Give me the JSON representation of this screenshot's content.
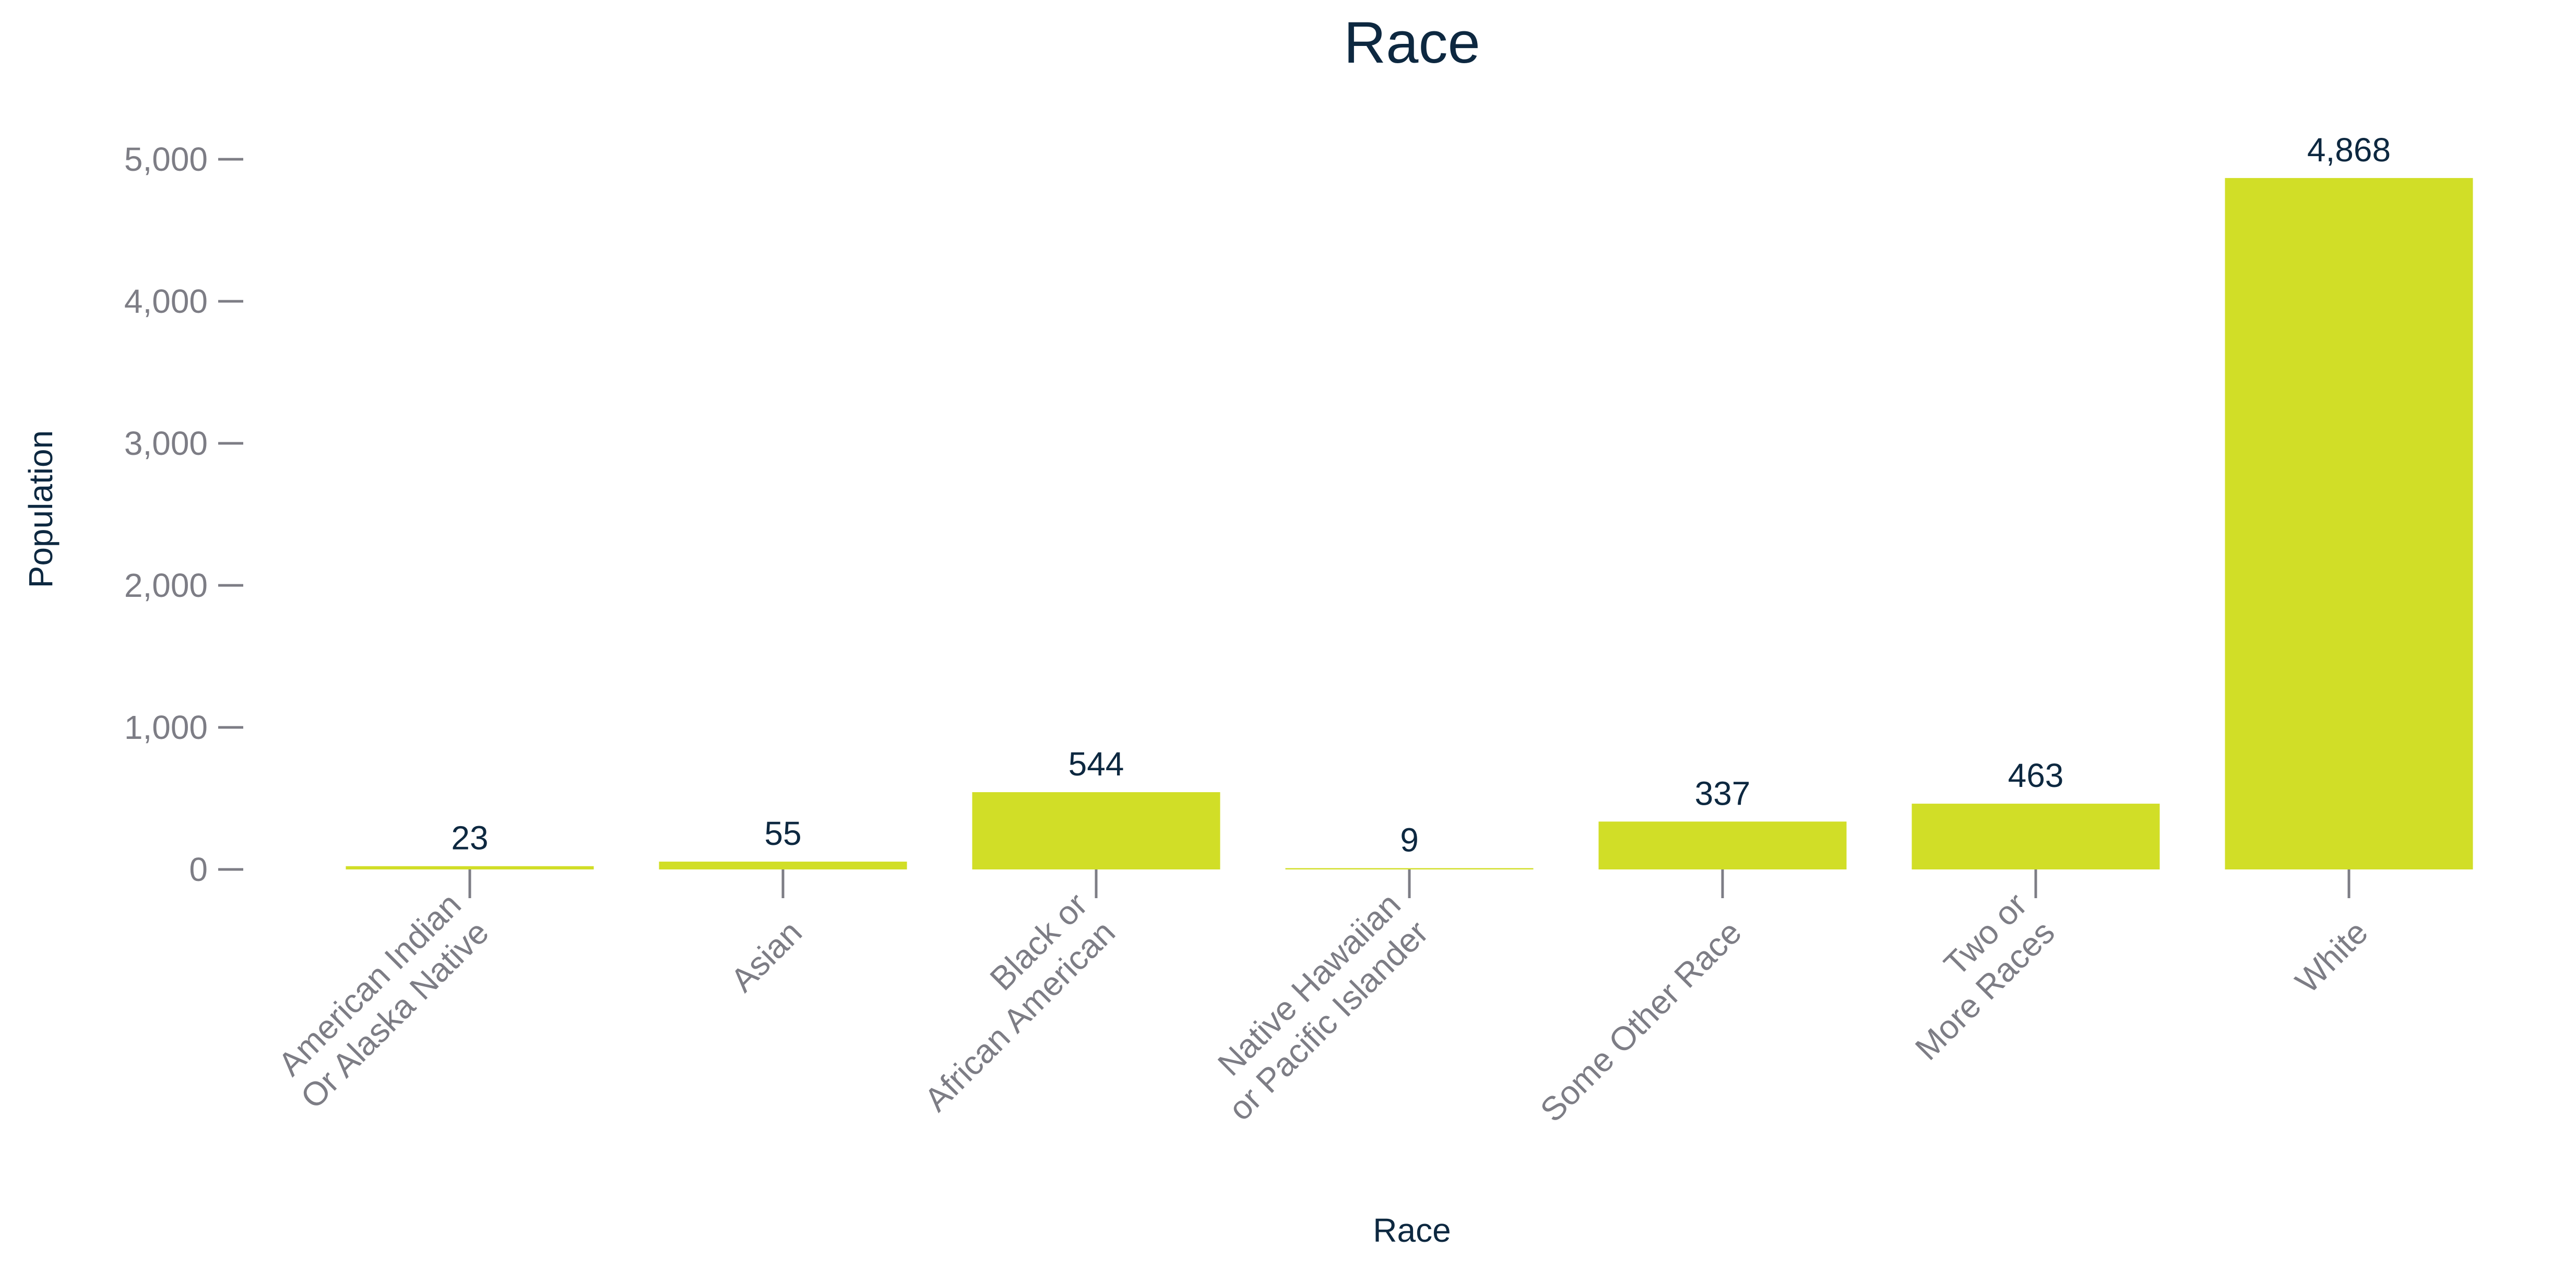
{
  "chart_data": {
    "type": "bar",
    "title": "Race",
    "xlabel": "Race",
    "ylabel": "Population",
    "categories": [
      [
        "American Indian",
        "Or Alaska Native"
      ],
      [
        "Asian"
      ],
      [
        "Black or",
        "African American"
      ],
      [
        "Native Hawaiian",
        "or Pacific Islander"
      ],
      [
        "Some Other Race"
      ],
      [
        "Two or",
        "More Races"
      ],
      [
        "White"
      ]
    ],
    "values": [
      23,
      55,
      544,
      9,
      337,
      463,
      4868
    ],
    "value_labels": [
      "23",
      "55",
      "544",
      "9",
      "337",
      "463",
      "4,868"
    ],
    "yticks": [
      0,
      1000,
      2000,
      3000,
      4000,
      5000
    ],
    "ytick_labels": [
      "0",
      "1,000",
      "2,000",
      "3,000",
      "4,000",
      "5,000"
    ],
    "ylim": [
      0,
      5000
    ],
    "grid": false,
    "legend": "none",
    "colors": {
      "bar": "#d1de27",
      "title": "#0d2840",
      "axis_text": "#7d7d85",
      "value_label": "#0d2840",
      "axis_title": "#0d2840",
      "tick": "#7d7d85"
    }
  }
}
